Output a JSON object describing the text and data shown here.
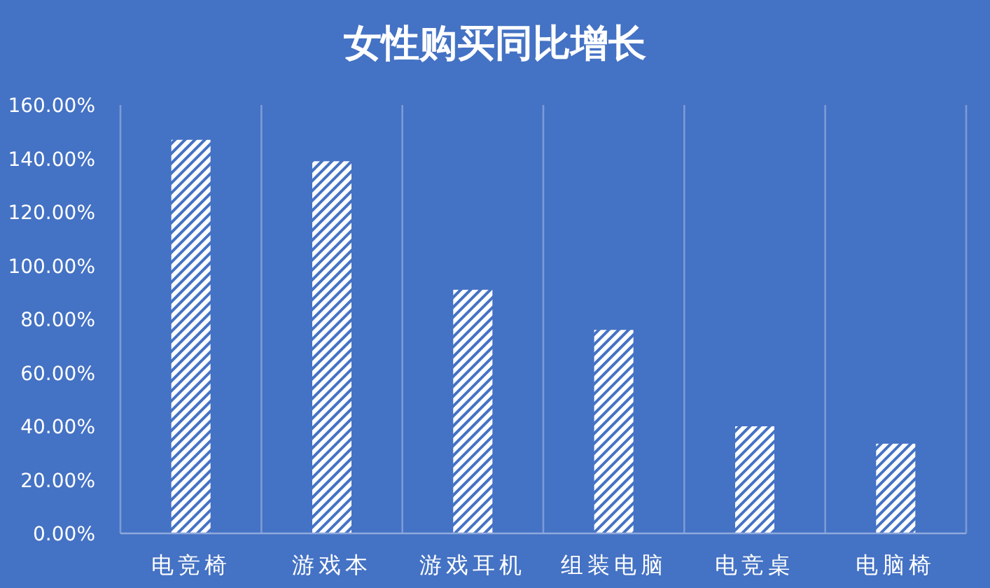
{
  "chart_data": {
    "type": "bar",
    "title": "女性购买同比增长",
    "categories": [
      "电竞椅",
      "游戏本",
      "游戏耳机",
      "组装电脑",
      "电竞桌",
      "电脑椅"
    ],
    "values": [
      147,
      139,
      91,
      76,
      40,
      33.5
    ],
    "color": "#ffffff",
    "ylim": [
      0,
      160
    ],
    "yticks": [
      {
        "value": 0,
        "label": "0.00%"
      },
      {
        "value": 20,
        "label": "20.00%"
      },
      {
        "value": 40,
        "label": "40.00%"
      },
      {
        "value": 60,
        "label": "60.00%"
      },
      {
        "value": 80,
        "label": "80.00%"
      },
      {
        "value": 100,
        "label": "100.00%"
      },
      {
        "value": 120,
        "label": "120.00%"
      },
      {
        "value": 140,
        "label": "140.00%"
      },
      {
        "value": 160,
        "label": "160.00%"
      }
    ],
    "grid": "x"
  }
}
